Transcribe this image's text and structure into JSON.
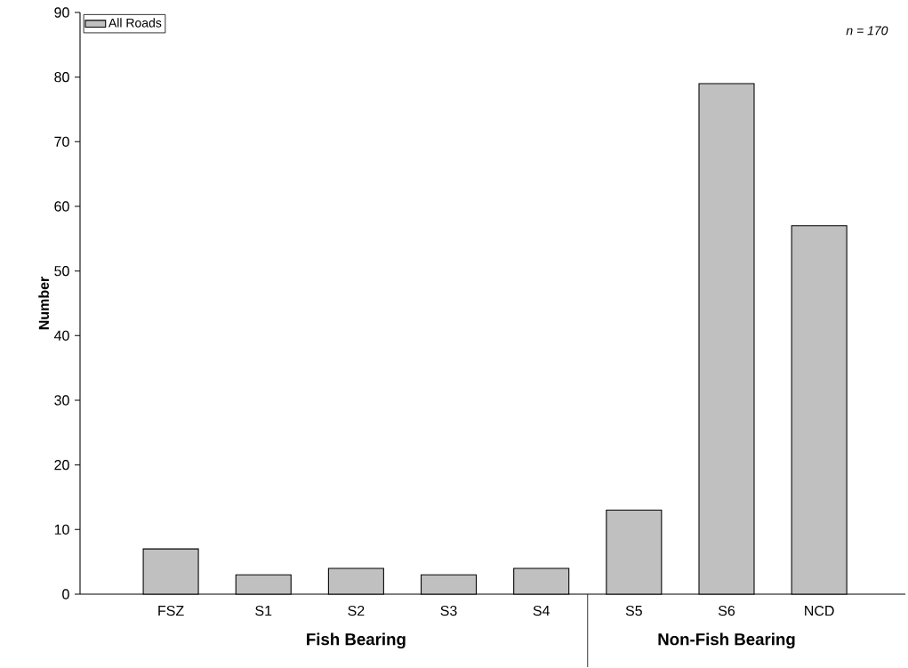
{
  "chart_data": {
    "type": "bar",
    "ylabel": "Number",
    "categories": [
      "FSZ",
      "S1",
      "S2",
      "S3",
      "S4",
      "S5",
      "S6",
      "NCD"
    ],
    "series": [
      {
        "name": "All Roads",
        "color": "#c0c0c0",
        "values": [
          7,
          3,
          4,
          3,
          4,
          13,
          79,
          57
        ]
      }
    ],
    "ylim": [
      0,
      90
    ],
    "yticks": [
      0,
      10,
      20,
      30,
      40,
      50,
      60,
      70,
      80,
      90
    ],
    "legend": "top left",
    "grid": false,
    "annotations": [
      "n = 170",
      "Fish Bearing",
      "Non-Fish Bearing"
    ]
  }
}
